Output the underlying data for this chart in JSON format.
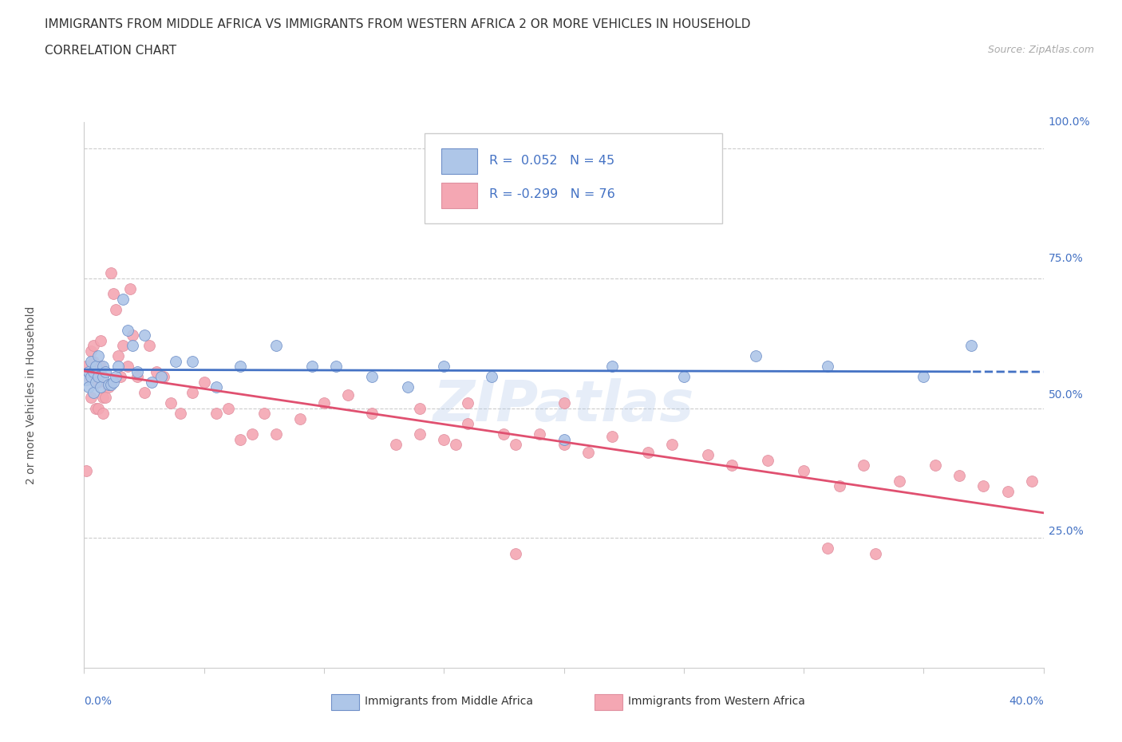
{
  "title_line1": "IMMIGRANTS FROM MIDDLE AFRICA VS IMMIGRANTS FROM WESTERN AFRICA 2 OR MORE VEHICLES IN HOUSEHOLD",
  "title_line2": "CORRELATION CHART",
  "source": "Source: ZipAtlas.com",
  "legend_label1": "Immigrants from Middle Africa",
  "legend_label2": "Immigrants from Western Africa",
  "R1": 0.052,
  "N1": 45,
  "R2": -0.299,
  "N2": 76,
  "color1": "#aec6e8",
  "color2": "#f4a7b3",
  "line_color1": "#4472c4",
  "line_color2": "#e05070",
  "xlim": [
    0.0,
    0.4
  ],
  "ylim": [
    0.0,
    1.05
  ],
  "blue_scatter_x": [
    0.001,
    0.002,
    0.002,
    0.003,
    0.003,
    0.004,
    0.004,
    0.005,
    0.005,
    0.006,
    0.006,
    0.007,
    0.008,
    0.008,
    0.009,
    0.01,
    0.011,
    0.012,
    0.013,
    0.014,
    0.016,
    0.018,
    0.02,
    0.022,
    0.025,
    0.028,
    0.032,
    0.038,
    0.045,
    0.055,
    0.065,
    0.08,
    0.095,
    0.105,
    0.12,
    0.135,
    0.15,
    0.17,
    0.2,
    0.22,
    0.25,
    0.28,
    0.31,
    0.35,
    0.37
  ],
  "blue_scatter_y": [
    0.555,
    0.57,
    0.54,
    0.59,
    0.56,
    0.53,
    0.57,
    0.58,
    0.55,
    0.6,
    0.56,
    0.54,
    0.56,
    0.58,
    0.57,
    0.545,
    0.545,
    0.55,
    0.56,
    0.58,
    0.71,
    0.65,
    0.62,
    0.57,
    0.64,
    0.55,
    0.56,
    0.59,
    0.59,
    0.54,
    0.58,
    0.62,
    0.58,
    0.58,
    0.56,
    0.54,
    0.58,
    0.56,
    0.44,
    0.58,
    0.56,
    0.6,
    0.58,
    0.56,
    0.62
  ],
  "pink_scatter_x": [
    0.001,
    0.001,
    0.002,
    0.003,
    0.003,
    0.004,
    0.004,
    0.005,
    0.005,
    0.006,
    0.006,
    0.007,
    0.007,
    0.008,
    0.008,
    0.009,
    0.01,
    0.011,
    0.012,
    0.013,
    0.014,
    0.015,
    0.016,
    0.018,
    0.019,
    0.02,
    0.022,
    0.025,
    0.027,
    0.03,
    0.033,
    0.036,
    0.04,
    0.045,
    0.05,
    0.055,
    0.06,
    0.065,
    0.07,
    0.075,
    0.08,
    0.09,
    0.1,
    0.11,
    0.12,
    0.13,
    0.14,
    0.15,
    0.16,
    0.18,
    0.19,
    0.2,
    0.21,
    0.22,
    0.235,
    0.245,
    0.26,
    0.27,
    0.285,
    0.3,
    0.315,
    0.325,
    0.34,
    0.355,
    0.365,
    0.375,
    0.385,
    0.395,
    0.31,
    0.33,
    0.2,
    0.155,
    0.175,
    0.14,
    0.16,
    0.18
  ],
  "pink_scatter_y": [
    0.58,
    0.38,
    0.56,
    0.61,
    0.52,
    0.59,
    0.62,
    0.5,
    0.55,
    0.55,
    0.5,
    0.63,
    0.58,
    0.52,
    0.49,
    0.52,
    0.54,
    0.76,
    0.72,
    0.69,
    0.6,
    0.56,
    0.62,
    0.58,
    0.73,
    0.64,
    0.56,
    0.53,
    0.62,
    0.57,
    0.56,
    0.51,
    0.49,
    0.53,
    0.55,
    0.49,
    0.5,
    0.44,
    0.45,
    0.49,
    0.45,
    0.48,
    0.51,
    0.525,
    0.49,
    0.43,
    0.45,
    0.44,
    0.47,
    0.43,
    0.45,
    0.43,
    0.415,
    0.445,
    0.415,
    0.43,
    0.41,
    0.39,
    0.4,
    0.38,
    0.35,
    0.39,
    0.36,
    0.39,
    0.37,
    0.35,
    0.34,
    0.36,
    0.23,
    0.22,
    0.51,
    0.43,
    0.45,
    0.5,
    0.51,
    0.22
  ],
  "hlines": [
    1.0,
    0.75,
    0.5,
    0.25
  ]
}
